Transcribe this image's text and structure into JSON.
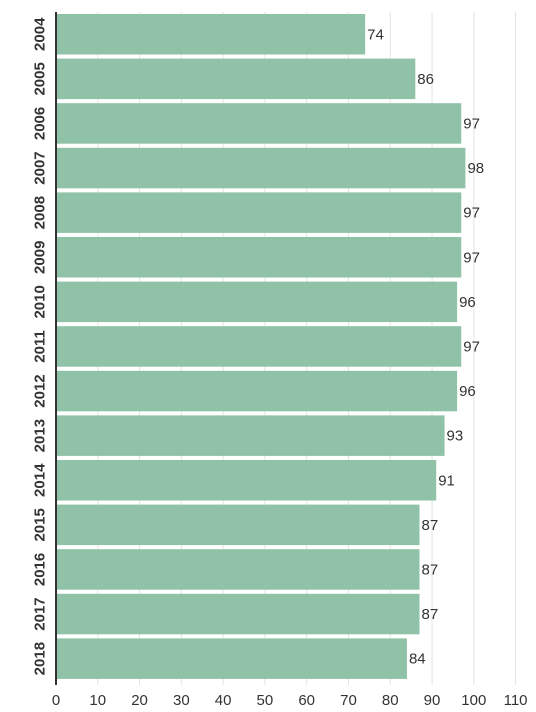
{
  "chart_data": {
    "type": "bar",
    "orientation": "horizontal",
    "title": "",
    "xlabel": "",
    "ylabel": "",
    "categories": [
      "2004",
      "2005",
      "2006",
      "2007",
      "2008",
      "2009",
      "2010",
      "2011",
      "2012",
      "2013",
      "2014",
      "2015",
      "2016",
      "2017",
      "2018"
    ],
    "values": [
      74,
      86,
      97,
      98,
      97,
      97,
      96,
      97,
      96,
      93,
      91,
      87,
      87,
      87,
      84
    ],
    "xlim": [
      0,
      110
    ],
    "xticks": [
      0,
      10,
      20,
      30,
      40,
      50,
      60,
      70,
      80,
      90,
      100,
      110
    ],
    "grid": true,
    "data_labels": true,
    "legend": "none",
    "colors": {
      "bar": "#8fc2a6",
      "grid": "#e3e3e3",
      "axis": "#333333",
      "text": "#333333"
    }
  }
}
